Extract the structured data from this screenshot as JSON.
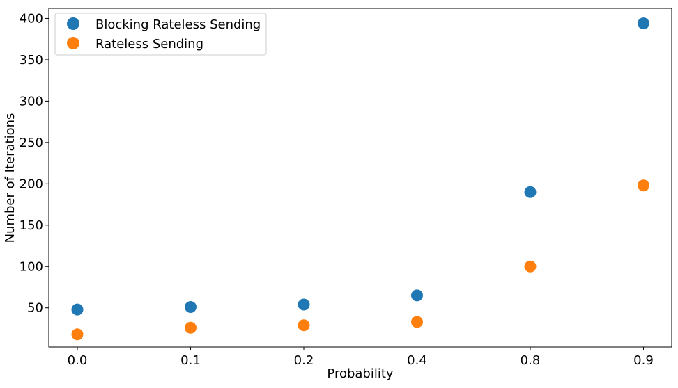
{
  "chart_data": {
    "type": "scatter",
    "title": "",
    "xlabel": "Probability",
    "ylabel": "Number of Iterations",
    "categories": [
      "0.0",
      "0.1",
      "0.2",
      "0.4",
      "0.8",
      "0.9"
    ],
    "ylim": [
      0,
      410
    ],
    "yticks": [
      50,
      100,
      150,
      200,
      250,
      300,
      350,
      400
    ],
    "grid": false,
    "legend": "top-left",
    "series": [
      {
        "name": "Blocking Rateless Sending",
        "color": "#1f77b4",
        "values": [
          48,
          51,
          54,
          65,
          190,
          394
        ]
      },
      {
        "name": "Rateless Sending",
        "color": "#ff7f0e",
        "values": [
          18,
          26,
          29,
          33,
          100,
          198
        ]
      }
    ]
  }
}
